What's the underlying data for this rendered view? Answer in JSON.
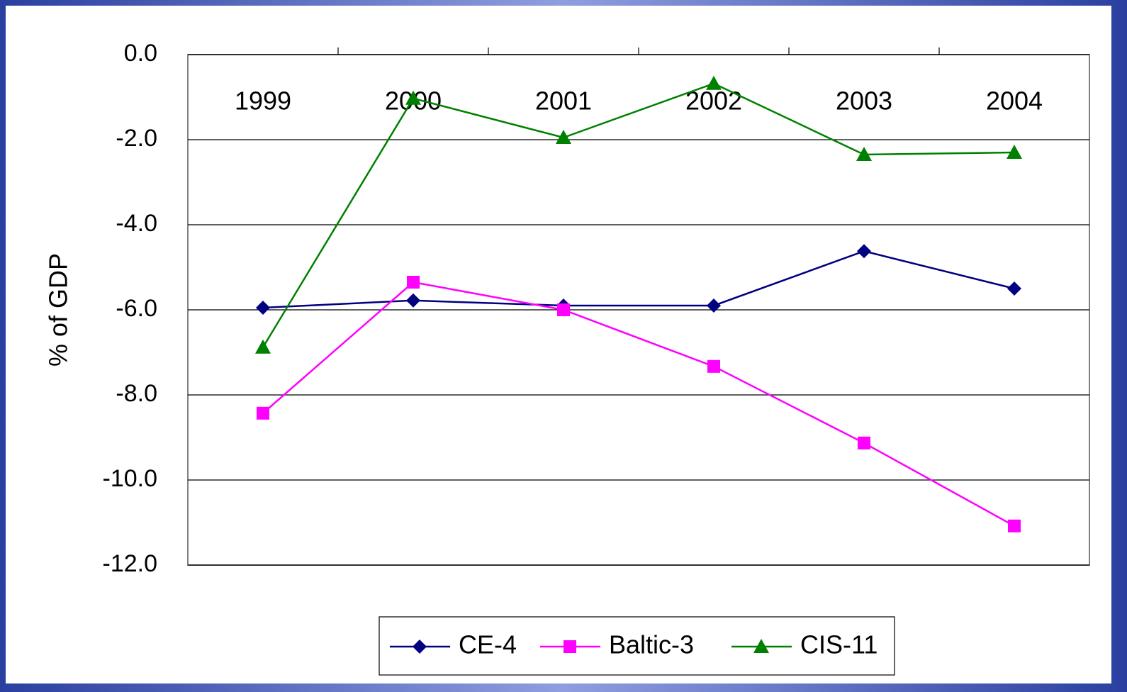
{
  "chart_data": {
    "type": "line",
    "y_label": "% of GDP",
    "categories": [
      "1999",
      "2000",
      "2001",
      "2002",
      "2003",
      "2004"
    ],
    "series": [
      {
        "name": "CE-4",
        "color": "#000080",
        "marker": "diamond",
        "values": [
          -5.95,
          -5.78,
          -5.9,
          -5.9,
          -4.62,
          -5.5
        ]
      },
      {
        "name": "Baltic-3",
        "color": "#ff00ff",
        "marker": "square",
        "values": [
          -8.43,
          -5.35,
          -6.0,
          -7.33,
          -9.13,
          -11.08
        ]
      },
      {
        "name": "CIS-11",
        "color": "#008000",
        "marker": "triangle",
        "values": [
          -6.88,
          -1.03,
          -1.95,
          -0.68,
          -2.35,
          -2.3
        ]
      }
    ],
    "ylim": [
      -12,
      0
    ],
    "yticks": [
      {
        "value": 0,
        "label": "0.0"
      },
      {
        "value": -2,
        "label": "-2.0"
      },
      {
        "value": -4,
        "label": "-4.0"
      },
      {
        "value": -6,
        "label": "-6.0"
      },
      {
        "value": -8,
        "label": "-8.0"
      },
      {
        "value": -10,
        "label": "-10.0"
      },
      {
        "value": -12,
        "label": "-12.0"
      }
    ],
    "grid": true,
    "legend": "bottom"
  }
}
